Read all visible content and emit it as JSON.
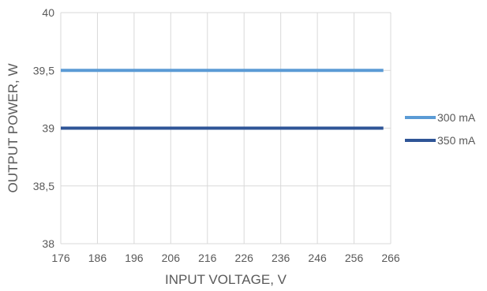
{
  "chart_data": {
    "type": "line",
    "xlabel": "INPUT VOLTAGE, V",
    "ylabel": "OUTPUT POWER, W",
    "xlim": [
      176,
      266
    ],
    "ylim": [
      38,
      40
    ],
    "x_ticks": [
      "176",
      "186",
      "196",
      "206",
      "216",
      "226",
      "236",
      "246",
      "256",
      "266"
    ],
    "y_ticks": [
      "38",
      "38,5",
      "39",
      "39,5",
      "40"
    ],
    "grid": true,
    "legend_position": "right",
    "series": [
      {
        "name": "300 mA",
        "color": "#5B9BD5",
        "x": [
          176,
          264
        ],
        "y": [
          39.5,
          39.5
        ]
      },
      {
        "name": "350 mA",
        "color": "#2F5597",
        "x": [
          176,
          264
        ],
        "y": [
          39,
          39
        ]
      }
    ]
  }
}
